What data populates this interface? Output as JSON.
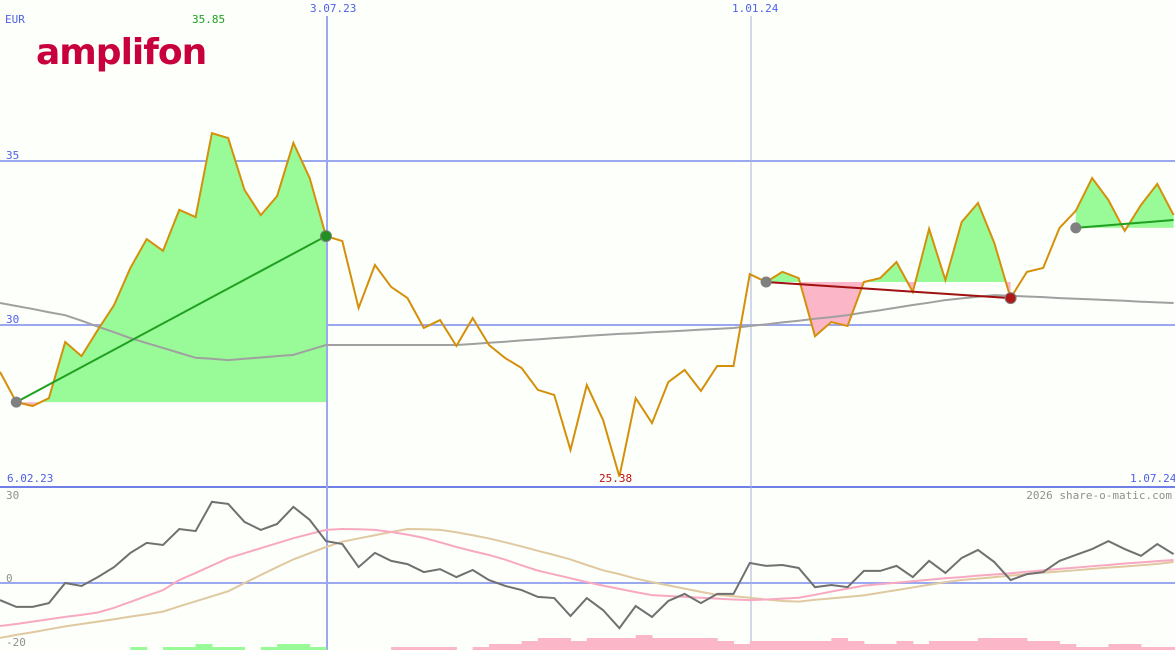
{
  "logo": {
    "text": "amplifon",
    "color": "#c8003c"
  },
  "watermark": "2026 share-o-matic.com",
  "chart_data": [
    {
      "type": "line",
      "currency_label": "EUR",
      "start_date": "6.02.23",
      "interval": "weekly",
      "x_tick_labels": [
        "6.02.23",
        "3.07.23",
        "1.01.24",
        "1.07.24"
      ],
      "y_tick_labels": [
        "35",
        "30"
      ],
      "ylim": [
        25,
        37
      ],
      "grid": true,
      "max_label": "35.85",
      "min_label": "25.38",
      "colors": {
        "price": "#d4900a",
        "moving_average": "#a0a0a0",
        "up_fill": "#98fb98",
        "down_fill": "#fbb6c8",
        "grid": "#9aa8f0",
        "max": "#20a020",
        "min": "#c01010",
        "trend_up": "#20a020",
        "trend_down": "#a01010"
      },
      "series": [
        {
          "values": [
            28.57,
            27.65,
            27.53,
            27.77,
            29.48,
            29.05,
            29.85,
            30.61,
            31.74,
            32.62,
            32.26,
            33.51,
            33.29,
            35.85,
            35.7,
            34.12,
            33.35,
            33.93,
            35.55,
            34.48,
            32.71,
            32.56,
            30.52,
            31.83,
            31.16,
            30.82,
            29.91,
            30.15,
            29.36,
            30.21,
            29.39,
            28.99,
            28.69,
            28.02,
            27.87,
            26.19,
            28.17,
            27.1,
            25.38,
            27.77,
            27.01,
            28.26,
            28.63,
            27.99,
            28.75,
            28.75,
            31.55,
            31.31,
            31.62,
            31.43,
            29.66,
            30.09,
            29.97,
            31.31,
            31.43,
            31.92,
            31.01,
            32.93,
            31.37,
            33.14,
            33.72,
            32.5,
            30.82,
            31.62,
            31.74,
            32.96,
            33.48,
            34.48,
            33.81,
            32.87,
            33.66,
            34.3,
            33.35
          ]
        },
        {
          "values": [
            30.67,
            30.58,
            30.49,
            30.39,
            30.3,
            30.13,
            29.95,
            29.78,
            29.6,
            29.45,
            29.3,
            29.15,
            29.0,
            28.97,
            28.93,
            28.97,
            29.01,
            29.05,
            29.09,
            29.24,
            29.39,
            29.39,
            29.39,
            29.39,
            29.39,
            29.39,
            29.39,
            29.39,
            29.39,
            29.42,
            29.46,
            29.49,
            29.53,
            29.56,
            29.6,
            29.63,
            29.67,
            29.7,
            29.73,
            29.75,
            29.78,
            29.8,
            29.83,
            29.86,
            29.88,
            29.91,
            29.97,
            30.02,
            30.08,
            30.13,
            30.19,
            30.24,
            30.3,
            30.38,
            30.45,
            30.53,
            30.61,
            30.68,
            30.76,
            30.81,
            30.86,
            30.91,
            30.89,
            30.87,
            30.85,
            30.82,
            30.8,
            30.78,
            30.76,
            30.74,
            30.71,
            30.69,
            30.67
          ]
        }
      ],
      "trends": [
        {
          "from_date": "13.02.23",
          "to_date": "3.07.23",
          "from": 27.65,
          "to": 32.71,
          "direction": "up"
        },
        {
          "from_date": "8.01.24",
          "to_date": "22.04.24",
          "from": 31.31,
          "to": 30.82,
          "direction": "down"
        },
        {
          "from_date": "20.05.24",
          "to_date": "1.07.24",
          "from": 32.96,
          "to": 33.2,
          "direction": "up"
        }
      ]
    },
    {
      "type": "line",
      "y_tick_labels": [
        "30",
        "0",
        "-20"
      ],
      "ylim": [
        -20,
        30
      ],
      "colors": {
        "momentum": "#707070",
        "fast": "#f8a8c0",
        "slow": "#e0c8a0",
        "hist_up": "#98fb98",
        "hist_down": "#fbb6c8"
      },
      "series": [
        {
          "values": [
            -5.8,
            -8.1,
            -8.1,
            -6.8,
            0,
            -1,
            2,
            5.4,
            10.2,
            13.6,
            12.9,
            18.3,
            17.6,
            27.5,
            26.8,
            20.7,
            18,
            20,
            25.8,
            21.4,
            14.2,
            13.2,
            5.4,
            10.2,
            7.5,
            6.4,
            3.7,
            4.7,
            2,
            4.4,
            1,
            -1,
            -2.4,
            -4.7,
            -5.1,
            -11.2,
            -5.1,
            -9.2,
            -15.3,
            -7.8,
            -11.5,
            -6.1,
            -3.7,
            -6.8,
            -3.7,
            -3.7,
            6.8,
            5.8,
            6.1,
            5.1,
            -1.4,
            -0.7,
            -1.4,
            4.1,
            4.1,
            5.8,
            2,
            7.5,
            3.4,
            8.5,
            11.2,
            7.1,
            1,
            3,
            3.7,
            7.5,
            9.5,
            11.5,
            14.2,
            11.5,
            9.2,
            13.2,
            9.8
          ]
        },
        {
          "values": [
            -14.6,
            -13.9,
            -13.1,
            -12.3,
            -11.5,
            -10.8,
            -10.0,
            -8.4,
            -6.4,
            -4.4,
            -2.4,
            1.0,
            3.4,
            5.9,
            8.4,
            10.1,
            11.8,
            13.5,
            15.2,
            16.6,
            18.0,
            18.3,
            18.2,
            18.0,
            17.3,
            16.4,
            15.3,
            13.8,
            12.2,
            10.8,
            9.5,
            7.9,
            6.0,
            4.2,
            2.9,
            1.6,
            0.3,
            -0.9,
            -2.0,
            -3.1,
            -4.1,
            -4.4,
            -4.7,
            -5.0,
            -5.3,
            -5.6,
            -5.8,
            -5.6,
            -5.3,
            -5.0,
            -4.0,
            -2.9,
            -1.9,
            -0.9,
            -0.4,
            0.1,
            0.6,
            1.1,
            1.6,
            2.0,
            2.5,
            2.9,
            3.3,
            3.8,
            4.3,
            4.8,
            5.2,
            5.7,
            6.1,
            6.6,
            7.0,
            7.4,
            7.8
          ]
        },
        {
          "values": [
            -18.6,
            -17.6,
            -16.7,
            -15.7,
            -14.7,
            -13.9,
            -13.1,
            -12.3,
            -11.4,
            -10.6,
            -9.7,
            -7.9,
            -6.2,
            -4.5,
            -2.8,
            0,
            2.7,
            5.4,
            8.0,
            10.1,
            12.2,
            14.0,
            15.1,
            16.2,
            17.3,
            18.3,
            18.2,
            18.0,
            17.2,
            16.2,
            15.1,
            13.8,
            12.4,
            10.9,
            9.5,
            8.0,
            6.1,
            4.3,
            3.0,
            1.5,
            0.3,
            -0.8,
            -1.9,
            -3.0,
            -4.0,
            -4.5,
            -5.0,
            -5.6,
            -6.1,
            -6.3,
            -5.7,
            -5.2,
            -4.7,
            -4.2,
            -3.3,
            -2.4,
            -1.5,
            -0.6,
            0.3,
            1.0,
            1.5,
            2.0,
            2.5,
            3.0,
            3.5,
            3.9,
            4.3,
            4.8,
            5.2,
            5.6,
            6.0,
            6.5,
            7.1
          ]
        }
      ],
      "histogram": [
        0,
        0,
        0,
        0,
        0,
        0,
        0,
        0,
        1,
        0,
        1,
        1,
        2,
        1,
        1,
        0,
        1,
        2,
        2,
        1,
        0,
        0,
        0,
        0,
        -1,
        -1,
        -1,
        -1,
        0,
        -1,
        -2,
        -2,
        -3,
        -4,
        -4,
        -3,
        -4,
        -4,
        -4,
        -5,
        -4,
        -4,
        -4,
        -4,
        -3,
        -2,
        -3,
        -3,
        -3,
        -3,
        -3,
        -4,
        -3,
        -2,
        -2,
        -3,
        -2,
        -3,
        -3,
        -3,
        -4,
        -4,
        -4,
        -3,
        -3,
        -2,
        -1,
        -1,
        -2,
        -2,
        -1,
        -1,
        -1
      ]
    }
  ]
}
